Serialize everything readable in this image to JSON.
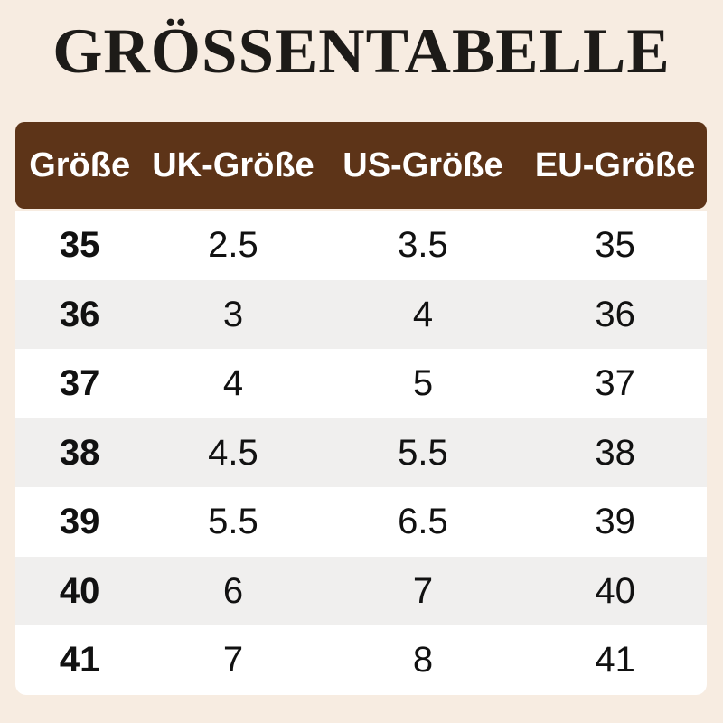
{
  "title": {
    "text": "GRÖSSENTABELLE"
  },
  "colors": {
    "page_background": "#f7ece1",
    "header_background": "#5d3418",
    "header_text": "#ffffff",
    "row_white": "#ffffff",
    "row_gray": "#f0efee",
    "title_text": "#1d1b18",
    "cell_text": "#111111"
  },
  "table": {
    "columns": [
      "Größe",
      "UK-Größe",
      "US-Größe",
      "EU-Größe"
    ],
    "rows": [
      [
        "35",
        "2.5",
        "3.5",
        "35"
      ],
      [
        "36",
        "3",
        "4",
        "36"
      ],
      [
        "37",
        "4",
        "5",
        "37"
      ],
      [
        "38",
        "4.5",
        "5.5",
        "38"
      ],
      [
        "39",
        "5.5",
        "6.5",
        "39"
      ],
      [
        "40",
        "6",
        "7",
        "40"
      ],
      [
        "41",
        "7",
        "8",
        "41"
      ]
    ]
  },
  "chart_data": {
    "type": "table",
    "title": "GRÖSSENTABELLE",
    "columns": [
      "Größe",
      "UK-Größe",
      "US-Größe",
      "EU-Größe"
    ],
    "rows": [
      [
        "35",
        "2.5",
        "3.5",
        "35"
      ],
      [
        "36",
        "3",
        "4",
        "36"
      ],
      [
        "37",
        "4",
        "5",
        "37"
      ],
      [
        "38",
        "4.5",
        "5.5",
        "38"
      ],
      [
        "39",
        "5.5",
        "6.5",
        "39"
      ],
      [
        "40",
        "6",
        "7",
        "40"
      ],
      [
        "41",
        "7",
        "8",
        "41"
      ]
    ],
    "layout": {
      "header_style": "brown rounded bar, white bold text",
      "row_striping": "white / light-gray alternating starting with white",
      "grid": "off"
    }
  }
}
